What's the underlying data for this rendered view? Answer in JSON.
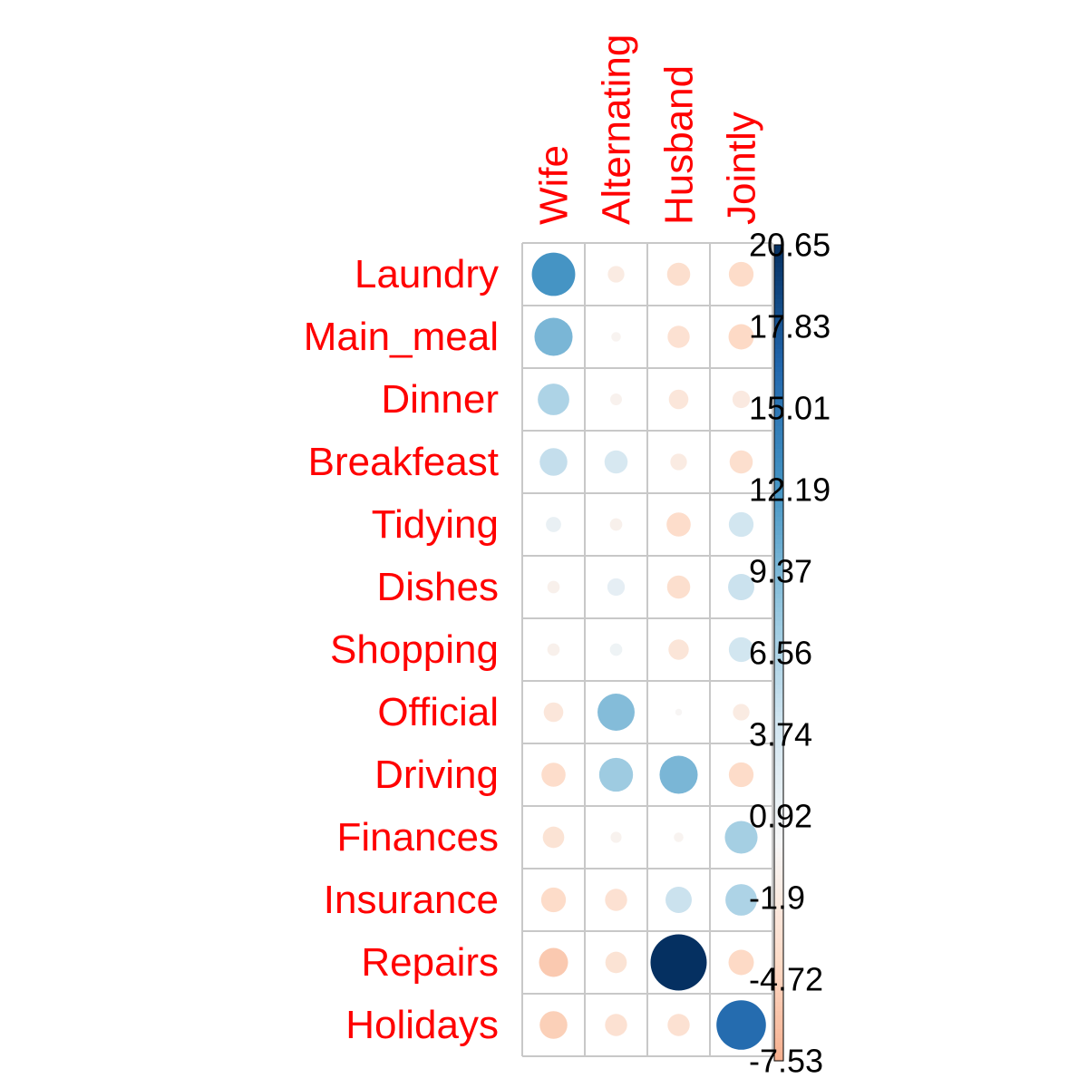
{
  "chart_data": {
    "type": "heatmap",
    "subtype": "corrplot-circle",
    "rows": [
      "Laundry",
      "Main_meal",
      "Dinner",
      "Breakfeast",
      "Tidying",
      "Dishes",
      "Shopping",
      "Official",
      "Driving",
      "Finances",
      "Insurance",
      "Repairs",
      "Holidays"
    ],
    "columns": [
      "Wife",
      "Alternating",
      "Husband",
      "Jointly"
    ],
    "values": [
      [
        12.3,
        -1.8,
        -3.5,
        -4.0
      ],
      [
        9.5,
        -0.6,
        -3.2,
        -4.2
      ],
      [
        6.5,
        -0.9,
        -2.5,
        -2.0
      ],
      [
        5.0,
        3.5,
        -1.8,
        -3.5
      ],
      [
        1.5,
        -1.0,
        -3.8,
        4.0
      ],
      [
        -1.0,
        2.0,
        -3.5,
        4.5
      ],
      [
        -1.0,
        1.0,
        -2.7,
        4.0
      ],
      [
        -2.5,
        9.0,
        -0.3,
        -1.8
      ],
      [
        -3.8,
        7.5,
        9.5,
        -4.0
      ],
      [
        -3.0,
        -0.8,
        -0.6,
        7.0
      ],
      [
        -4.0,
        -3.2,
        4.5,
        6.5
      ],
      [
        -5.5,
        -3.0,
        20.65,
        -4.2
      ],
      [
        -5.0,
        -3.2,
        -3.2,
        16.0
      ]
    ],
    "legend": {
      "min": -7.53,
      "max": 20.65,
      "ticks": [
        "20.65",
        "17.83",
        "15.01",
        "12.19",
        "9.37",
        "6.56",
        "3.74",
        "0.92",
        "-1.9",
        "-4.72",
        "-7.53"
      ],
      "placement": "right"
    },
    "colors": {
      "label": "#ff0000",
      "grid": "#c8c8c8",
      "positive_max": "#053061",
      "negative_max": "#f4a582",
      "neutral": "#f7f7f7"
    }
  }
}
